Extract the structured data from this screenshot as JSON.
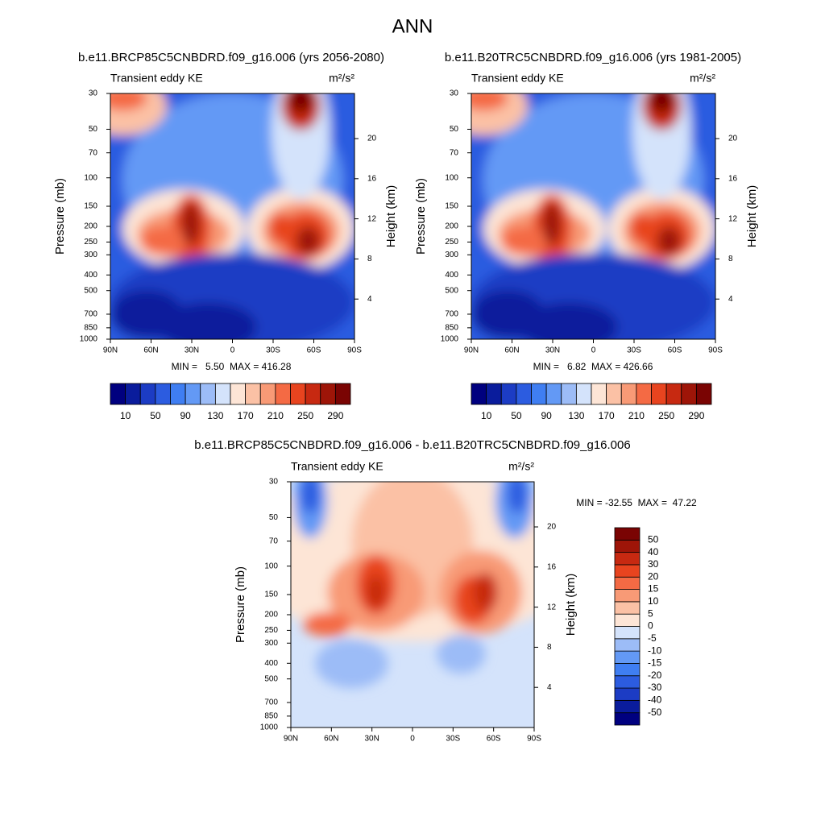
{
  "title": "ANN",
  "chart_data": [
    {
      "type": "contour",
      "title": "b.e11.BRCP85C5CNBDRD.f09_g16.006 (yrs 2056-2080)",
      "left_label": "Transient eddy KE",
      "units": "m²/s²",
      "y_label": "Pressure (mb)",
      "y2_label": "Height (km)",
      "xlim": [
        90,
        -90
      ],
      "xticks": [
        {
          "value": 90,
          "label": "90N"
        },
        {
          "value": 60,
          "label": "60N"
        },
        {
          "value": 30,
          "label": "30N"
        },
        0,
        {
          "value": -30,
          "label": "30S"
        },
        {
          "value": -60,
          "label": "60S"
        },
        {
          "value": -90,
          "label": "90S"
        }
      ],
      "ylim": [
        1000,
        30
      ],
      "log_y": true,
      "yticks": [
        30,
        50,
        70,
        100,
        150,
        200,
        250,
        300,
        400,
        500,
        700,
        850,
        1000
      ],
      "y2lim": [
        0,
        24.5
      ],
      "y2ticks": [
        4,
        8,
        12,
        16,
        20
      ],
      "stats_label": "MIN =   5.50  MAX = 416.28",
      "colorbar": "horizontal",
      "levels": [
        10,
        30,
        50,
        70,
        90,
        110,
        130,
        150,
        170,
        190,
        210,
        230,
        250,
        270,
        290
      ],
      "colorbar_ticks": [
        10,
        50,
        90,
        130,
        170,
        210,
        250,
        290
      ],
      "colors": [
        "#00007f",
        "#0a1c9c",
        "#1c3cc4",
        "#2c5ce0",
        "#3f7ef2",
        "#6399f5",
        "#9cbcf7",
        "#d4e3fb",
        "#fde5d6",
        "#fbc1a5",
        "#f89a76",
        "#f46a44",
        "#e8441f",
        "#c72911",
        "#9e1508",
        "#7a0403"
      ]
    },
    {
      "type": "contour",
      "title": "b.e11.B20TRC5CNBDRD.f09_g16.006 (yrs 1981-2005)",
      "left_label": "Transient eddy KE",
      "units": "m²/s²",
      "y_label": "Pressure (mb)",
      "y2_label": "Height (km)",
      "xlim": [
        90,
        -90
      ],
      "xticks": [
        {
          "value": 90,
          "label": "90N"
        },
        {
          "value": 60,
          "label": "60N"
        },
        {
          "value": 30,
          "label": "30N"
        },
        0,
        {
          "value": -30,
          "label": "30S"
        },
        {
          "value": -60,
          "label": "60S"
        },
        {
          "value": -90,
          "label": "90S"
        }
      ],
      "ylim": [
        1000,
        30
      ],
      "log_y": true,
      "yticks": [
        30,
        50,
        70,
        100,
        150,
        200,
        250,
        300,
        400,
        500,
        700,
        850,
        1000
      ],
      "y2lim": [
        0,
        24.5
      ],
      "y2ticks": [
        4,
        8,
        12,
        16,
        20
      ],
      "stats_label": "MIN =   6.82  MAX = 426.66",
      "colorbar": "horizontal",
      "levels": [
        10,
        30,
        50,
        70,
        90,
        110,
        130,
        150,
        170,
        190,
        210,
        230,
        250,
        270,
        290
      ],
      "colorbar_ticks": [
        10,
        50,
        90,
        130,
        170,
        210,
        250,
        290
      ],
      "colors": [
        "#00007f",
        "#0a1c9c",
        "#1c3cc4",
        "#2c5ce0",
        "#3f7ef2",
        "#6399f5",
        "#9cbcf7",
        "#d4e3fb",
        "#fde5d6",
        "#fbc1a5",
        "#f89a76",
        "#f46a44",
        "#e8441f",
        "#c72911",
        "#9e1508",
        "#7a0403"
      ]
    },
    {
      "type": "contour",
      "title": "b.e11.BRCP85C5CNBDRD.f09_g16.006 - b.e11.B20TRC5CNBDRD.f09_g16.006",
      "left_label": "Transient eddy KE",
      "units": "m²/s²",
      "y_label": "Pressure (mb)",
      "y2_label": "Height (km)",
      "xlim": [
        90,
        -90
      ],
      "xticks": [
        {
          "value": 90,
          "label": "90N"
        },
        {
          "value": 60,
          "label": "60N"
        },
        {
          "value": 30,
          "label": "30N"
        },
        0,
        {
          "value": -30,
          "label": "30S"
        },
        {
          "value": -60,
          "label": "60S"
        },
        {
          "value": -90,
          "label": "90S"
        }
      ],
      "ylim": [
        1000,
        30
      ],
      "log_y": true,
      "yticks": [
        30,
        50,
        70,
        100,
        150,
        200,
        250,
        300,
        400,
        500,
        700,
        850,
        1000
      ],
      "y2lim": [
        0,
        24.5
      ],
      "y2ticks": [
        4,
        8,
        12,
        16,
        20
      ],
      "stats_label": "MIN = -32.55  MAX =  47.22",
      "colorbar": "vertical",
      "levels": [
        -50,
        -40,
        -30,
        -20,
        -15,
        -10,
        -5,
        0,
        5,
        10,
        15,
        20,
        30,
        40,
        50
      ],
      "colorbar_ticks": [
        -50,
        -40,
        -30,
        -20,
        -15,
        -10,
        -5,
        0,
        5,
        10,
        15,
        20,
        30,
        40,
        50
      ],
      "colors": [
        "#00007f",
        "#0a1c9c",
        "#1c3cc4",
        "#2c5ce0",
        "#3f7ef2",
        "#6399f5",
        "#9cbcf7",
        "#d4e3fb",
        "#fde5d6",
        "#fbc1a5",
        "#f89a76",
        "#f46a44",
        "#e8441f",
        "#c72911",
        "#9e1508",
        "#7a0403"
      ]
    }
  ]
}
